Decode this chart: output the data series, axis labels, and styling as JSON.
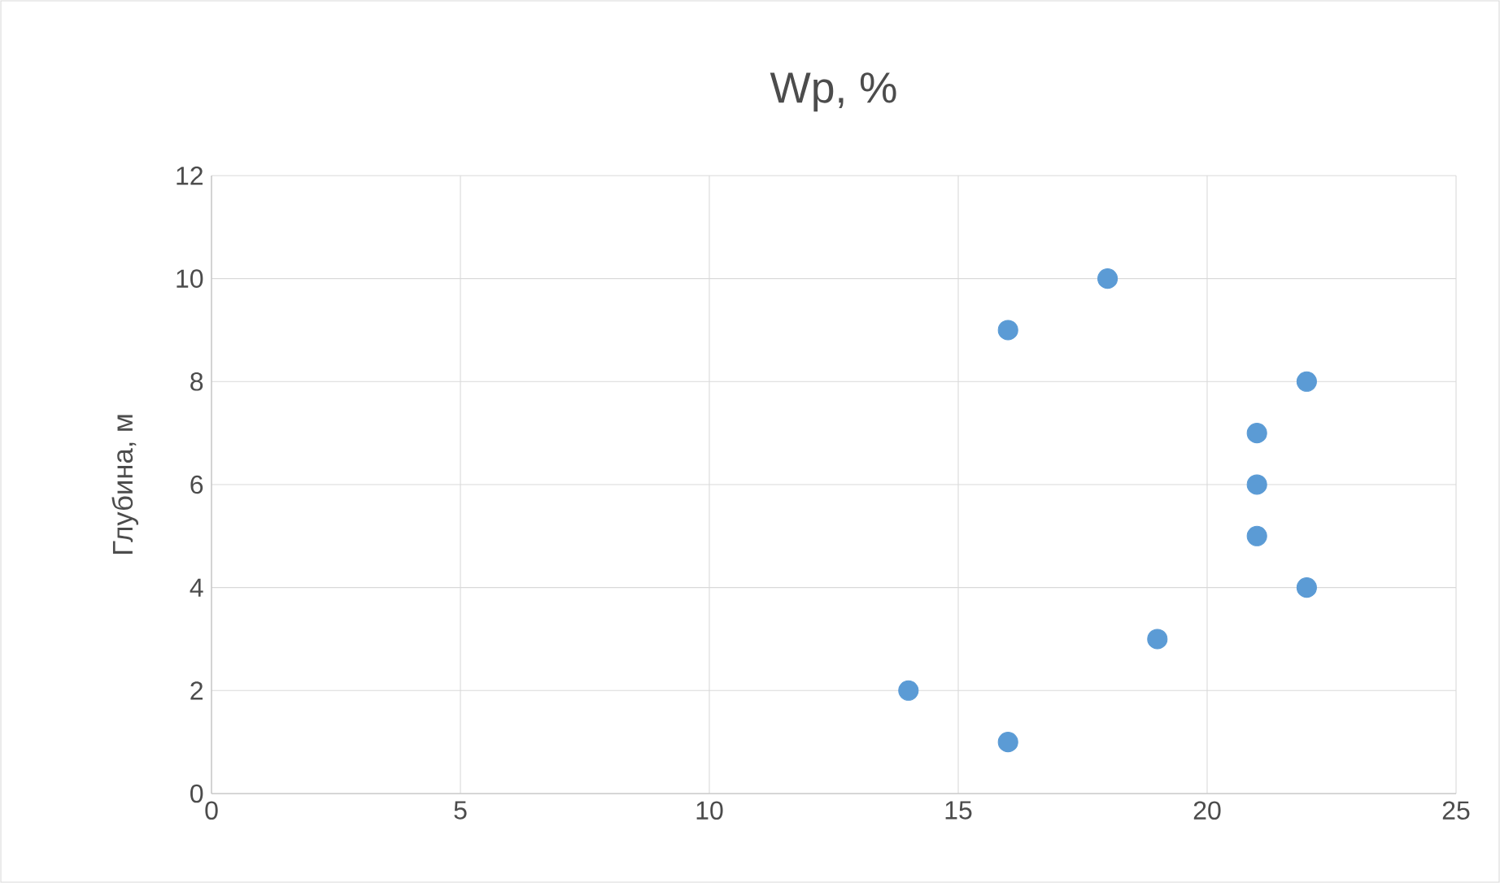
{
  "chart_data": {
    "type": "scatter",
    "title": "Wp, %",
    "ylabel": "Глубина, м",
    "x": [
      16,
      14,
      19,
      22,
      21,
      21,
      21,
      22,
      16,
      18
    ],
    "values": [
      1,
      2,
      3,
      4,
      5,
      6,
      7,
      8,
      9,
      10
    ],
    "color": "#5b9bd5",
    "marker": "circle",
    "xlim": [
      0,
      25
    ],
    "xticks": [
      0,
      5,
      10,
      15,
      20,
      25
    ],
    "ylim": [
      0,
      12
    ],
    "yticks": [
      0,
      2,
      4,
      6,
      8,
      10,
      12
    ],
    "grid": true
  }
}
